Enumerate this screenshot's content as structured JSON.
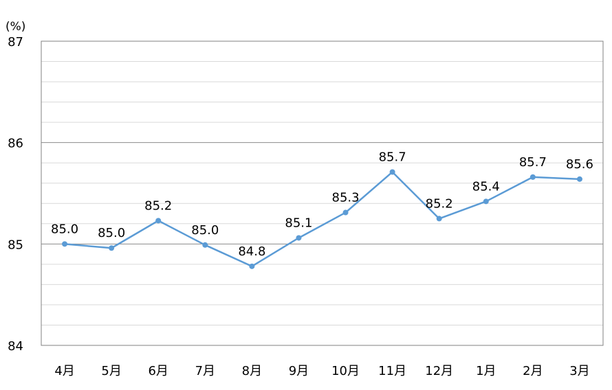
{
  "chart_data": {
    "type": "line",
    "unit_label": "(%)",
    "categories": [
      "4月",
      "5月",
      "6月",
      "7月",
      "8月",
      "9月",
      "10月",
      "11月",
      "12月",
      "1月",
      "2月",
      "3月"
    ],
    "series": [
      {
        "values": [
          85.0,
          84.96,
          85.23,
          84.99,
          84.78,
          85.06,
          85.31,
          85.71,
          85.25,
          85.42,
          85.66,
          85.64
        ],
        "labels": [
          "85.0",
          "85.0",
          "85.2",
          "85.0",
          "84.8",
          "85.1",
          "85.3",
          "85.7",
          "85.2",
          "85.4",
          "85.7",
          "85.6"
        ],
        "color": "#5b9bd5"
      }
    ],
    "ylim": [
      84,
      87
    ],
    "yticks": [
      "84",
      "85",
      "86",
      "87"
    ],
    "minor_grid_step": 0.2,
    "grid": true,
    "legend": "none"
  }
}
